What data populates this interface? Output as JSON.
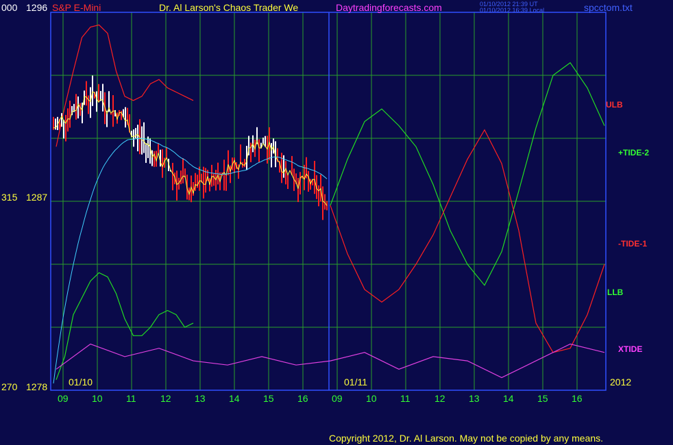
{
  "header": {
    "left_y": "000",
    "left_price": "1296",
    "symbol": "S&P E-Mini",
    "title": "Dr. Al Larson's Chaos Trader We",
    "site": "Daytradingforecasts.com",
    "ut_line": "01/10/2012 21:39 UT",
    "local_line": "01/10/2012 16:39 Local",
    "file": "spcctom.txt"
  },
  "footer": {
    "copyright": "Copyright 2012, Dr. Al Larson. May not be copied by any means."
  },
  "colors": {
    "background": "#0a0a4a",
    "grid": "#2aa02a",
    "ulb": "#ff2020",
    "tide_plus": "#22dd22",
    "xtide": "#e040e0",
    "yellow_ma": "#ffff40",
    "cyan_ma": "#40d0ff",
    "up_bar": "#ffffff",
    "down_bar": "#ff2020"
  },
  "chart_data": {
    "type": "line",
    "title": "S&P E-Mini",
    "y_axis": {
      "labels": [
        {
          "left": "000",
          "price": "1296"
        },
        {
          "left": "315",
          "price": "1287"
        },
        {
          "left": "270",
          "price": "1278"
        }
      ],
      "range": [
        1278,
        1296
      ]
    },
    "date_labels": [
      "01/10",
      "01/11",
      "2012"
    ],
    "hour_ticks": [
      "09",
      "10",
      "11",
      "12",
      "13",
      "14",
      "15",
      "16",
      "09",
      "10",
      "11",
      "12",
      "13",
      "14",
      "15",
      "16"
    ],
    "series_labels": [
      "ULB",
      "+TIDE-2",
      "-TIDE-1",
      "LLB",
      "XTIDE"
    ],
    "series": [
      {
        "name": "ULB",
        "color": "#ff2020",
        "x": [
          0,
          0.5,
          1,
          1.5,
          2,
          2.5,
          3,
          3.5,
          4,
          4.5,
          5,
          5.5,
          6,
          6.5,
          7,
          7.5,
          8
        ],
        "values": [
          1289.6,
          1291.5,
          1293.2,
          1294.8,
          1295.3,
          1295.4,
          1295.0,
          1293.2,
          1292.0,
          1291.8,
          1292.0,
          1292.6,
          1292.8,
          1292.4,
          1292.2,
          1292.0,
          1291.8
        ]
      },
      {
        "name": "+TIDE-2",
        "color": "#22dd22",
        "x": [
          8,
          8.5,
          9,
          9.5,
          10,
          10.5,
          11,
          11.5,
          12,
          12.5,
          13,
          13.5,
          14,
          14.5,
          15,
          15.5,
          16
        ],
        "values": [
          1286.8,
          1289.0,
          1290.8,
          1291.4,
          1290.6,
          1289.6,
          1287.8,
          1285.6,
          1284.0,
          1283.0,
          1284.6,
          1287.5,
          1290.5,
          1293.0,
          1293.6,
          1292.4,
          1290.6
        ]
      },
      {
        "name": "-TIDE-1",
        "color": "#ff2020",
        "x": [
          8,
          8.5,
          9,
          9.5,
          10,
          10.5,
          11,
          11.5,
          12,
          12.5,
          13,
          13.5,
          14,
          14.5,
          15,
          15.5,
          16
        ],
        "values": [
          1286.8,
          1284.5,
          1282.8,
          1282.2,
          1282.8,
          1284.0,
          1285.4,
          1287.2,
          1289.0,
          1290.4,
          1288.8,
          1285.6,
          1281.2,
          1279.8,
          1280.0,
          1281.6,
          1284.0
        ]
      },
      {
        "name": "LLB",
        "color": "#22dd22",
        "x": [
          0,
          0.5,
          1,
          1.5,
          2,
          2.5,
          3,
          3.5,
          4,
          4.5,
          5,
          5.5,
          6,
          6.5,
          7,
          7.5,
          8
        ],
        "values": [
          1278.5,
          1279.6,
          1281.6,
          1282.4,
          1283.2,
          1283.6,
          1283.4,
          1282.6,
          1281.4,
          1280.6,
          1280.6,
          1281.0,
          1281.6,
          1281.8,
          1281.6,
          1281.0,
          1281.2
        ]
      },
      {
        "name": "XTIDE",
        "color": "#e040e0",
        "x": [
          0,
          1,
          2,
          3,
          4,
          5,
          6,
          7,
          8,
          9,
          10,
          11,
          12,
          13,
          14,
          15,
          16
        ],
        "values": [
          1279.0,
          1280.2,
          1279.6,
          1280.0,
          1279.4,
          1279.2,
          1279.6,
          1279.2,
          1279.4,
          1279.8,
          1279.0,
          1279.6,
          1279.4,
          1278.6,
          1279.4,
          1280.2,
          1279.8
        ]
      }
    ],
    "grid": true,
    "legend": "right"
  }
}
